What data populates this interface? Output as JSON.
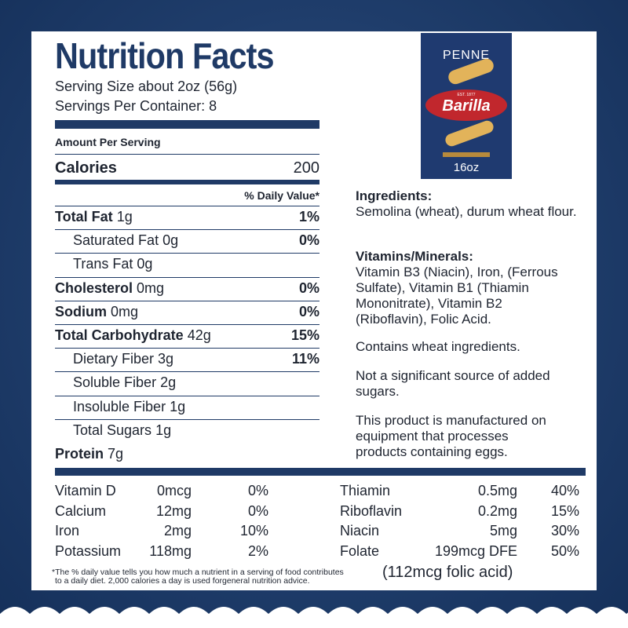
{
  "label": {
    "title": "Nutrition Facts",
    "serving_size": "Serving Size about 2oz (56g)",
    "servings": "Servings Per Container: 8",
    "amount_per_serving": "Amount Per Serving",
    "calories_label": "Calories",
    "calories_value": "200",
    "daily_value_header": "% Daily Value*",
    "rows": [
      {
        "name": "Total Fat",
        "amount": "1g",
        "dv": "1%",
        "bold": true
      },
      {
        "name": "Saturated Fat",
        "amount": "0g",
        "dv": "0%"
      },
      {
        "name": "Trans Fat",
        "amount": "0g",
        "dv": ""
      },
      {
        "name": "Cholesterol",
        "amount": "0mg",
        "dv": "0%",
        "bold": true
      },
      {
        "name": "Sodium",
        "amount": "0mg",
        "dv": "0%",
        "bold": true
      },
      {
        "name": "Total Carbohydrate",
        "amount": "42g",
        "dv": "15%",
        "bold": true
      },
      {
        "name": "Dietary Fiber",
        "amount": "3g",
        "dv": "11%"
      },
      {
        "name": "Soluble Fiber",
        "amount": "2g",
        "dv": ""
      },
      {
        "name": "Insoluble Fiber",
        "amount": "1g",
        "dv": ""
      },
      {
        "name": "Total Sugars",
        "amount": "1g",
        "dv": ""
      },
      {
        "name": "Protein",
        "amount": "7g",
        "dv": "",
        "bold": true
      }
    ],
    "vitamins_left": [
      [
        "Vitamin D",
        "0mcg",
        "0%"
      ],
      [
        "Calcium",
        "12mg",
        "0%"
      ],
      [
        "Iron",
        "2mg",
        "10%"
      ],
      [
        "Potassium",
        "118mg",
        "2%"
      ]
    ],
    "vitamins_right": [
      [
        "Thiamin",
        "0.5mg",
        "40%"
      ],
      [
        "Riboflavin",
        "0.2mg",
        "15%"
      ],
      [
        "Niacin",
        "5mg",
        "30%"
      ],
      [
        "Folate",
        "199mcg DFE",
        "50%"
      ]
    ],
    "folic_acid": "(112mcg folic acid)",
    "footnote_1": "*The % daily value tells you how much a nutrient in a serving of food contributes",
    "footnote_2": "to a daily diet. 2,000 calories a day is used forgeneral nutrition advice."
  },
  "info": {
    "ingredients_heading": "Ingredients:",
    "ingredients": "Semolina (wheat), durum wheat flour.",
    "vitamins_heading": "Vitamins/Minerals:",
    "vitamins": "Vitamin B3 (Niacin), Iron, (Ferrous Sulfate), Vitamin B1 (Thiamin Mononitrate), Vitamin B2 (Riboflavin), Folic Acid.",
    "allergen": "Contains wheat ingredients.",
    "sugars": "Not a significant source of added sugars.",
    "equipment": "This product is manufactured on equipment that processes products containing eggs."
  },
  "product": {
    "name": "PENNE",
    "brand": "Barilla",
    "est": "EST. 1877",
    "weight": "16oz"
  },
  "colors": {
    "navy": "#1f3a66",
    "brand_red": "#c1272d"
  }
}
